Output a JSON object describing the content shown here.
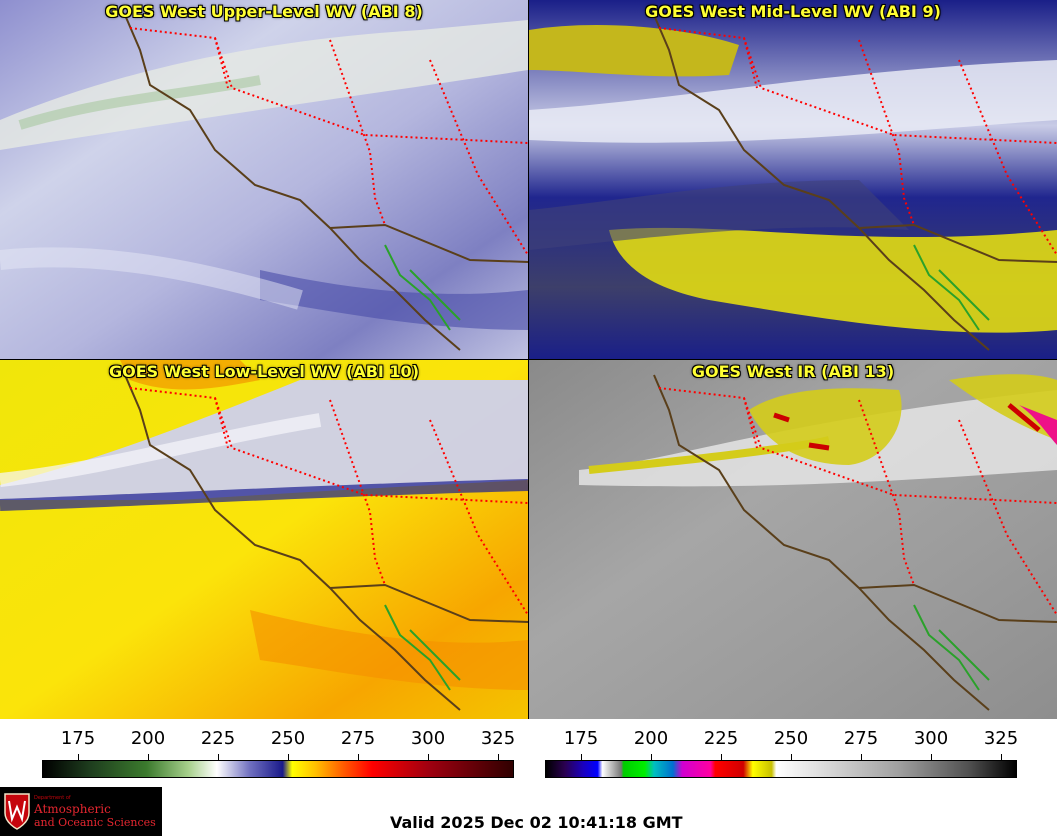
{
  "panels": [
    {
      "title": "GOES West Upper-Level WV (ABI 8)",
      "palette": "wv-upper"
    },
    {
      "title": "GOES West Mid-Level WV (ABI 9)",
      "palette": "wv-mid"
    },
    {
      "title": "GOES West Low-Level WV (ABI 10)",
      "palette": "wv-low"
    },
    {
      "title": "GOES West IR (ABI 13)",
      "palette": "ir"
    }
  ],
  "colorbars": {
    "wv": {
      "ticks": [
        "175",
        "200",
        "225",
        "250",
        "275",
        "300",
        "325"
      ]
    },
    "ir": {
      "ticks": [
        "175",
        "200",
        "225",
        "250",
        "275",
        "300",
        "325"
      ]
    }
  },
  "logo": {
    "line1": "Department of",
    "line2": "Atmospheric",
    "line3": "and Oceanic Sciences"
  },
  "valid_time": "Valid 2025 Dec 02 10:41:18 GMT",
  "colors": {
    "title": "#ffff33",
    "coast": "#5a3f1a",
    "border_state": "#ff0000",
    "border_mexico": "#2aa12a"
  }
}
